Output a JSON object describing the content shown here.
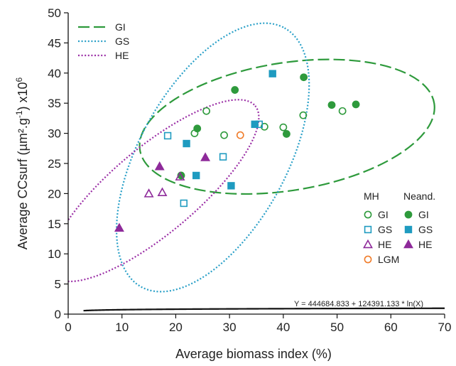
{
  "chart_data": {
    "type": "scatter",
    "xlabel": "Average biomass index (%)",
    "ylabel_main": "Average CCsurf (µm².g",
    "ylabel_sup": "-1",
    "ylabel_mid": ") x10",
    "ylabel_exp": "6",
    "xlim": [
      0,
      70
    ],
    "ylim": [
      0,
      50
    ],
    "x_ticks": [
      0,
      10,
      20,
      30,
      40,
      50,
      60,
      70
    ],
    "y_ticks": [
      0,
      5,
      10,
      15,
      20,
      25,
      30,
      35,
      40,
      45,
      50
    ],
    "grid": false,
    "ellipse_legend": [
      {
        "label": "GI",
        "color": "#2e9a3c",
        "style": "long-dash"
      },
      {
        "label": "GS",
        "color": "#2aa0c8",
        "style": "dotted"
      },
      {
        "label": "HE",
        "color": "#9b2fa6",
        "style": "dotted"
      }
    ],
    "ellipses": [
      {
        "name": "GI",
        "color": "#2e9a3c",
        "style": "long-dash",
        "cx": 40.7,
        "cy": 31.1,
        "rx": 27.7,
        "ry": 10.6,
        "angle_deg": -9
      },
      {
        "name": "GS",
        "color": "#2aa0c8",
        "style": "dotted",
        "cx": 26.9,
        "cy": 26.0,
        "rx": 27.5,
        "ry": 12.2,
        "angle_deg": -61
      },
      {
        "name": "HE",
        "color": "#9b2fa6",
        "style": "dotted",
        "cx": 16.0,
        "cy": 20.5,
        "rx": 24.5,
        "ry": 7.1,
        "angle_deg": -40
      }
    ],
    "marker_legend": {
      "header_left": "MH",
      "header_right": "Neand.",
      "rows": [
        {
          "label_left": "GI",
          "label_right": "GI",
          "group": "GI"
        },
        {
          "label_left": "GS",
          "label_right": "GS",
          "group": "GS"
        },
        {
          "label_left": "HE",
          "label_right": "HE",
          "group": "HE"
        },
        {
          "label_left": "LGM",
          "label_right": "",
          "group": "LGM"
        }
      ]
    },
    "groups": {
      "GI": {
        "shape": "circle",
        "color": "#2e9a3c"
      },
      "GS": {
        "shape": "square",
        "color": "#1f9bc0"
      },
      "HE": {
        "shape": "triangle",
        "color": "#8e2a9a"
      },
      "LGM": {
        "shape": "circle",
        "color": "#f07c2a"
      }
    },
    "series": [
      {
        "group": "GI",
        "filled": false,
        "points": [
          [
            23.5,
            30.0
          ],
          [
            25.7,
            33.7
          ],
          [
            29.0,
            29.7
          ],
          [
            36.5,
            31.1
          ],
          [
            40.0,
            31.0
          ],
          [
            43.7,
            33.0
          ],
          [
            51.0,
            33.7
          ]
        ]
      },
      {
        "group": "GI",
        "filled": true,
        "points": [
          [
            21.0,
            23.0
          ],
          [
            24.0,
            30.8
          ],
          [
            31.0,
            37.2
          ],
          [
            40.6,
            29.9
          ],
          [
            43.8,
            39.3
          ],
          [
            49.0,
            34.7
          ],
          [
            53.5,
            34.8
          ]
        ]
      },
      {
        "group": "GS",
        "filled": false,
        "points": [
          [
            18.5,
            29.6
          ],
          [
            21.5,
            18.4
          ],
          [
            28.8,
            26.1
          ],
          [
            35.5,
            31.5
          ]
        ]
      },
      {
        "group": "GS",
        "filled": true,
        "points": [
          [
            22.0,
            28.3
          ],
          [
            23.8,
            23.0
          ],
          [
            30.3,
            21.3
          ],
          [
            34.7,
            31.5
          ],
          [
            38.0,
            39.9
          ]
        ]
      },
      {
        "group": "HE",
        "filled": false,
        "points": [
          [
            15.0,
            20.0
          ],
          [
            17.5,
            20.2
          ],
          [
            20.8,
            22.8
          ]
        ]
      },
      {
        "group": "HE",
        "filled": true,
        "points": [
          [
            9.5,
            14.3
          ],
          [
            17.0,
            24.5
          ],
          [
            25.5,
            26.0
          ]
        ]
      },
      {
        "group": "LGM",
        "filled": false,
        "points": [
          [
            32.0,
            29.7
          ]
        ]
      }
    ],
    "regression": {
      "a": 444684.833,
      "b": 124391.133,
      "scale": 1000000,
      "xmin": 2.85,
      "xmax": 70
    },
    "equation": "Y = 444684.833 + 124391.133 * ln(X)"
  }
}
